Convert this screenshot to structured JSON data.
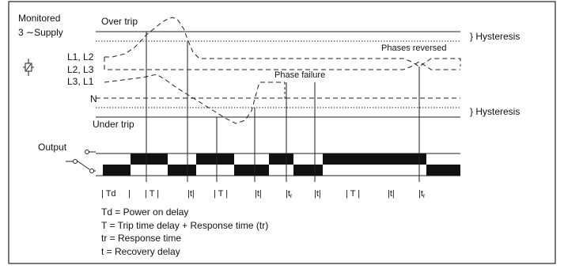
{
  "labels": {
    "monitored": "Monitored",
    "supply": "3 ∼Supply",
    "over_trip": "Over trip",
    "under_trip": "Under trip",
    "hysteresis_top": "} Hysteresis",
    "hysteresis_bottom": "} Hysteresis",
    "l1_l2": "L1, L2",
    "l2_l3": "L2, L3",
    "l3_l1": "L3, L1",
    "n": "N",
    "phases_reversed": "Phases reversed",
    "phase_failure": "Phase failure",
    "output": "Output"
  },
  "timeline": [
    {
      "text": "| Td",
      "sub": ""
    },
    {
      "text": "|",
      "sub": ""
    },
    {
      "text": "| T |",
      "sub": ""
    },
    {
      "text": "|t|",
      "sub": ""
    },
    {
      "text": "| T |",
      "sub": ""
    },
    {
      "text": "|t|",
      "sub": ""
    },
    {
      "text": "|t",
      "sub": "r"
    },
    {
      "text": "|t|",
      "sub": ""
    },
    {
      "text": "| T |",
      "sub": ""
    },
    {
      "text": "|t|",
      "sub": ""
    },
    {
      "text": "|t",
      "sub": "r"
    }
  ],
  "legend": [
    "Td = Power on delay",
    "T = Trip time delay + Response time (tr)",
    "tr = Response time",
    "t = Recovery delay"
  ]
}
